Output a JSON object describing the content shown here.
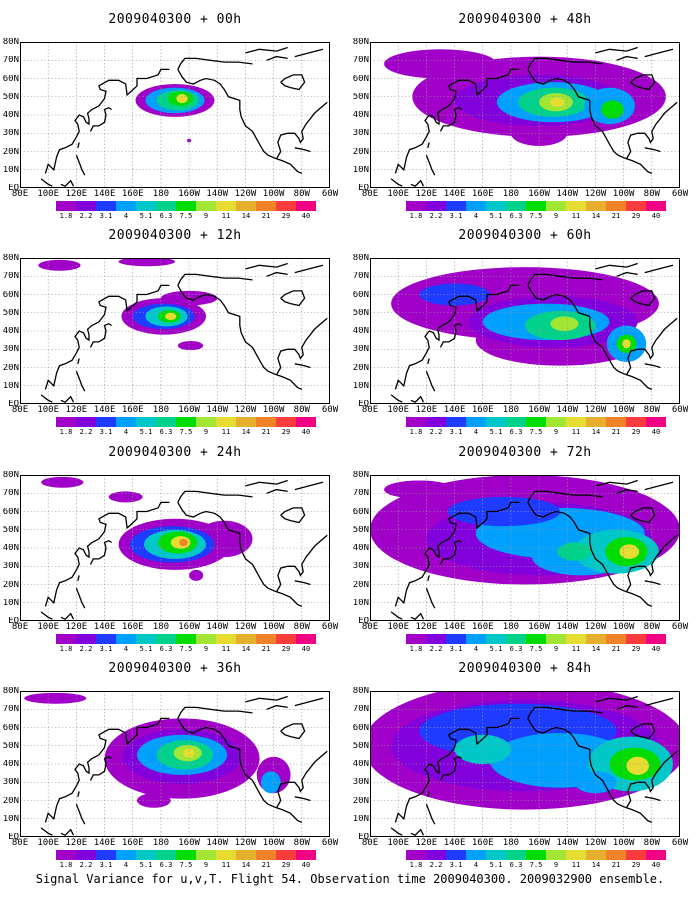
{
  "caption": "Signal Variance for u,v,T. Flight 54. Observation time 2009040300. 2009032900 ensemble.",
  "lat_labels": [
    "80N",
    "70N",
    "60N",
    "50N",
    "40N",
    "30N",
    "20N",
    "10N",
    "EQ"
  ],
  "lon_labels": [
    "80E",
    "100E",
    "120E",
    "140E",
    "160E",
    "180",
    "160W",
    "140W",
    "120W",
    "100W",
    "80W",
    "60W"
  ],
  "colorbar": {
    "labels": [
      "1.8",
      "2.2",
      "3.1",
      "4",
      "5.1",
      "6.3",
      "7.5",
      "9",
      "11",
      "14",
      "21",
      "29",
      "40"
    ],
    "colors": [
      "#a000c8",
      "#8200dc",
      "#1e3cff",
      "#00a0ff",
      "#00c8c8",
      "#00d28c",
      "#00dc00",
      "#a0e632",
      "#e6dc32",
      "#e6af2d",
      "#f08228",
      "#fa3c3c",
      "#f00082"
    ]
  },
  "panels": [
    {
      "id": "p00",
      "title": "2009040300 + 00h"
    },
    {
      "id": "p48",
      "title": "2009040300 + 48h"
    },
    {
      "id": "p12",
      "title": "2009040300 + 12h"
    },
    {
      "id": "p60",
      "title": "2009040300 + 60h"
    },
    {
      "id": "p24",
      "title": "2009040300 + 24h"
    },
    {
      "id": "p72",
      "title": "2009040300 + 72h"
    },
    {
      "id": "p36",
      "title": "2009040300 + 36h"
    },
    {
      "id": "p84",
      "title": "2009040300 + 84h"
    }
  ],
  "map_data": {
    "projection": "lat-lon",
    "domain": {
      "lon_min_east": 80,
      "lon_max_east": 300,
      "lat_min": 0,
      "lat_max": 80
    },
    "variable": "Signal variance for u,v,T"
  }
}
